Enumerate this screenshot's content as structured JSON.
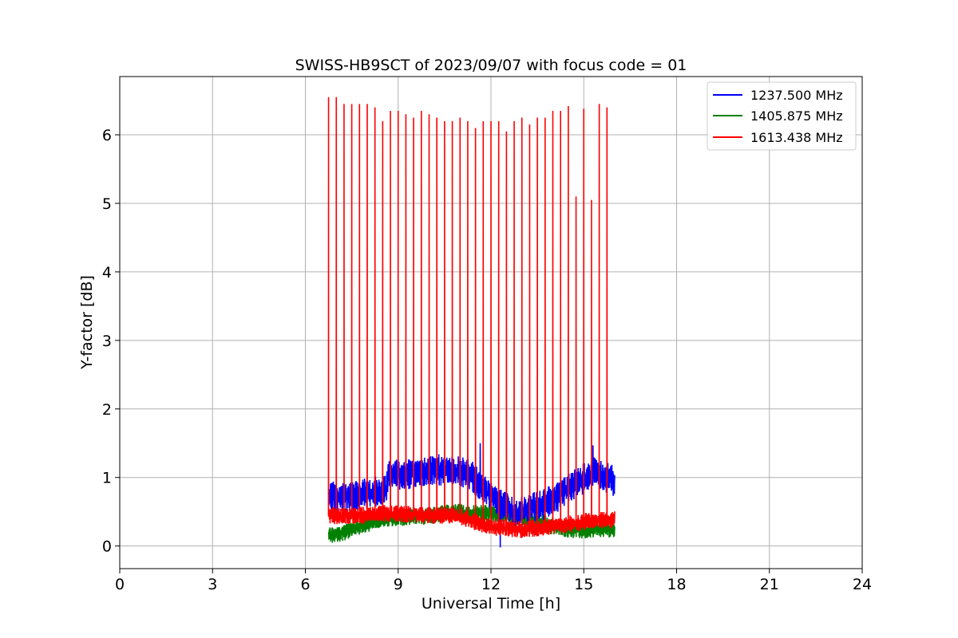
{
  "chart_data": {
    "type": "line",
    "title": "SWISS-HB9SCT of 2023/09/07 with focus code = 01",
    "xlabel": "Universal Time [h]",
    "ylabel": "Y-factor [dB]",
    "xlim": [
      0,
      24
    ],
    "ylim": [
      -0.33,
      6.85
    ],
    "xticks": [
      0,
      3,
      6,
      9,
      12,
      15,
      18,
      21,
      24
    ],
    "yticks": [
      0,
      1,
      2,
      3,
      4,
      5,
      6
    ],
    "grid": true,
    "legend_position": "top-right",
    "data_range_h": [
      6.75,
      16.0
    ],
    "series": [
      {
        "name": "1237.500 MHz",
        "color": "#0000ff",
        "style": "noisy band",
        "baseline_curve": [
          [
            6.75,
            0.72
          ],
          [
            8.6,
            0.78
          ],
          [
            8.7,
            1.02
          ],
          [
            10.0,
            1.12
          ],
          [
            11.3,
            1.05
          ],
          [
            11.7,
            0.88
          ],
          [
            12.3,
            0.62
          ],
          [
            12.8,
            0.45
          ],
          [
            13.6,
            0.58
          ],
          [
            14.5,
            0.85
          ],
          [
            15.3,
            1.05
          ],
          [
            16.0,
            0.95
          ]
        ],
        "noise_amplitude": 0.25,
        "spikes": [
          [
            11.65,
            1.5
          ],
          [
            15.3,
            1.47
          ],
          [
            12.3,
            -0.02
          ]
        ]
      },
      {
        "name": "1405.875 MHz",
        "color": "#008000",
        "style": "noisy band",
        "baseline_curve": [
          [
            6.75,
            0.15
          ],
          [
            8.0,
            0.32
          ],
          [
            9.0,
            0.42
          ],
          [
            10.0,
            0.45
          ],
          [
            11.0,
            0.48
          ],
          [
            12.0,
            0.5
          ],
          [
            13.0,
            0.4
          ],
          [
            14.0,
            0.3
          ],
          [
            15.0,
            0.22
          ],
          [
            16.0,
            0.25
          ]
        ],
        "noise_amplitude": 0.14
      },
      {
        "name": "1613.438 MHz",
        "color": "#ff0000",
        "style": "noisy band with periodic spikes",
        "baseline_curve": [
          [
            6.75,
            0.45
          ],
          [
            8.0,
            0.45
          ],
          [
            9.5,
            0.47
          ],
          [
            11.0,
            0.42
          ],
          [
            12.0,
            0.3
          ],
          [
            13.0,
            0.22
          ],
          [
            14.0,
            0.3
          ],
          [
            15.0,
            0.35
          ],
          [
            16.0,
            0.38
          ]
        ],
        "noise_amplitude": 0.14,
        "spike_times": [
          6.75,
          7.0,
          7.25,
          7.5,
          7.75,
          8.0,
          8.25,
          8.5,
          8.75,
          9.0,
          9.25,
          9.5,
          9.75,
          10.0,
          10.25,
          10.5,
          10.75,
          11.0,
          11.25,
          11.5,
          11.75,
          12.0,
          12.25,
          12.5,
          12.75,
          13.0,
          13.25,
          13.5,
          13.75,
          14.0,
          14.25,
          14.5,
          14.75,
          15.0,
          15.25,
          15.5,
          15.75
        ],
        "spike_peaks": [
          6.55,
          6.55,
          6.45,
          6.45,
          6.45,
          6.45,
          6.4,
          6.2,
          6.35,
          6.35,
          6.3,
          6.25,
          6.35,
          6.3,
          6.25,
          6.2,
          6.2,
          6.25,
          6.2,
          6.1,
          6.2,
          6.2,
          6.2,
          6.05,
          6.2,
          6.25,
          6.15,
          6.25,
          6.25,
          6.35,
          6.35,
          6.42,
          5.1,
          6.38,
          5.05,
          6.45,
          6.4
        ]
      }
    ]
  }
}
